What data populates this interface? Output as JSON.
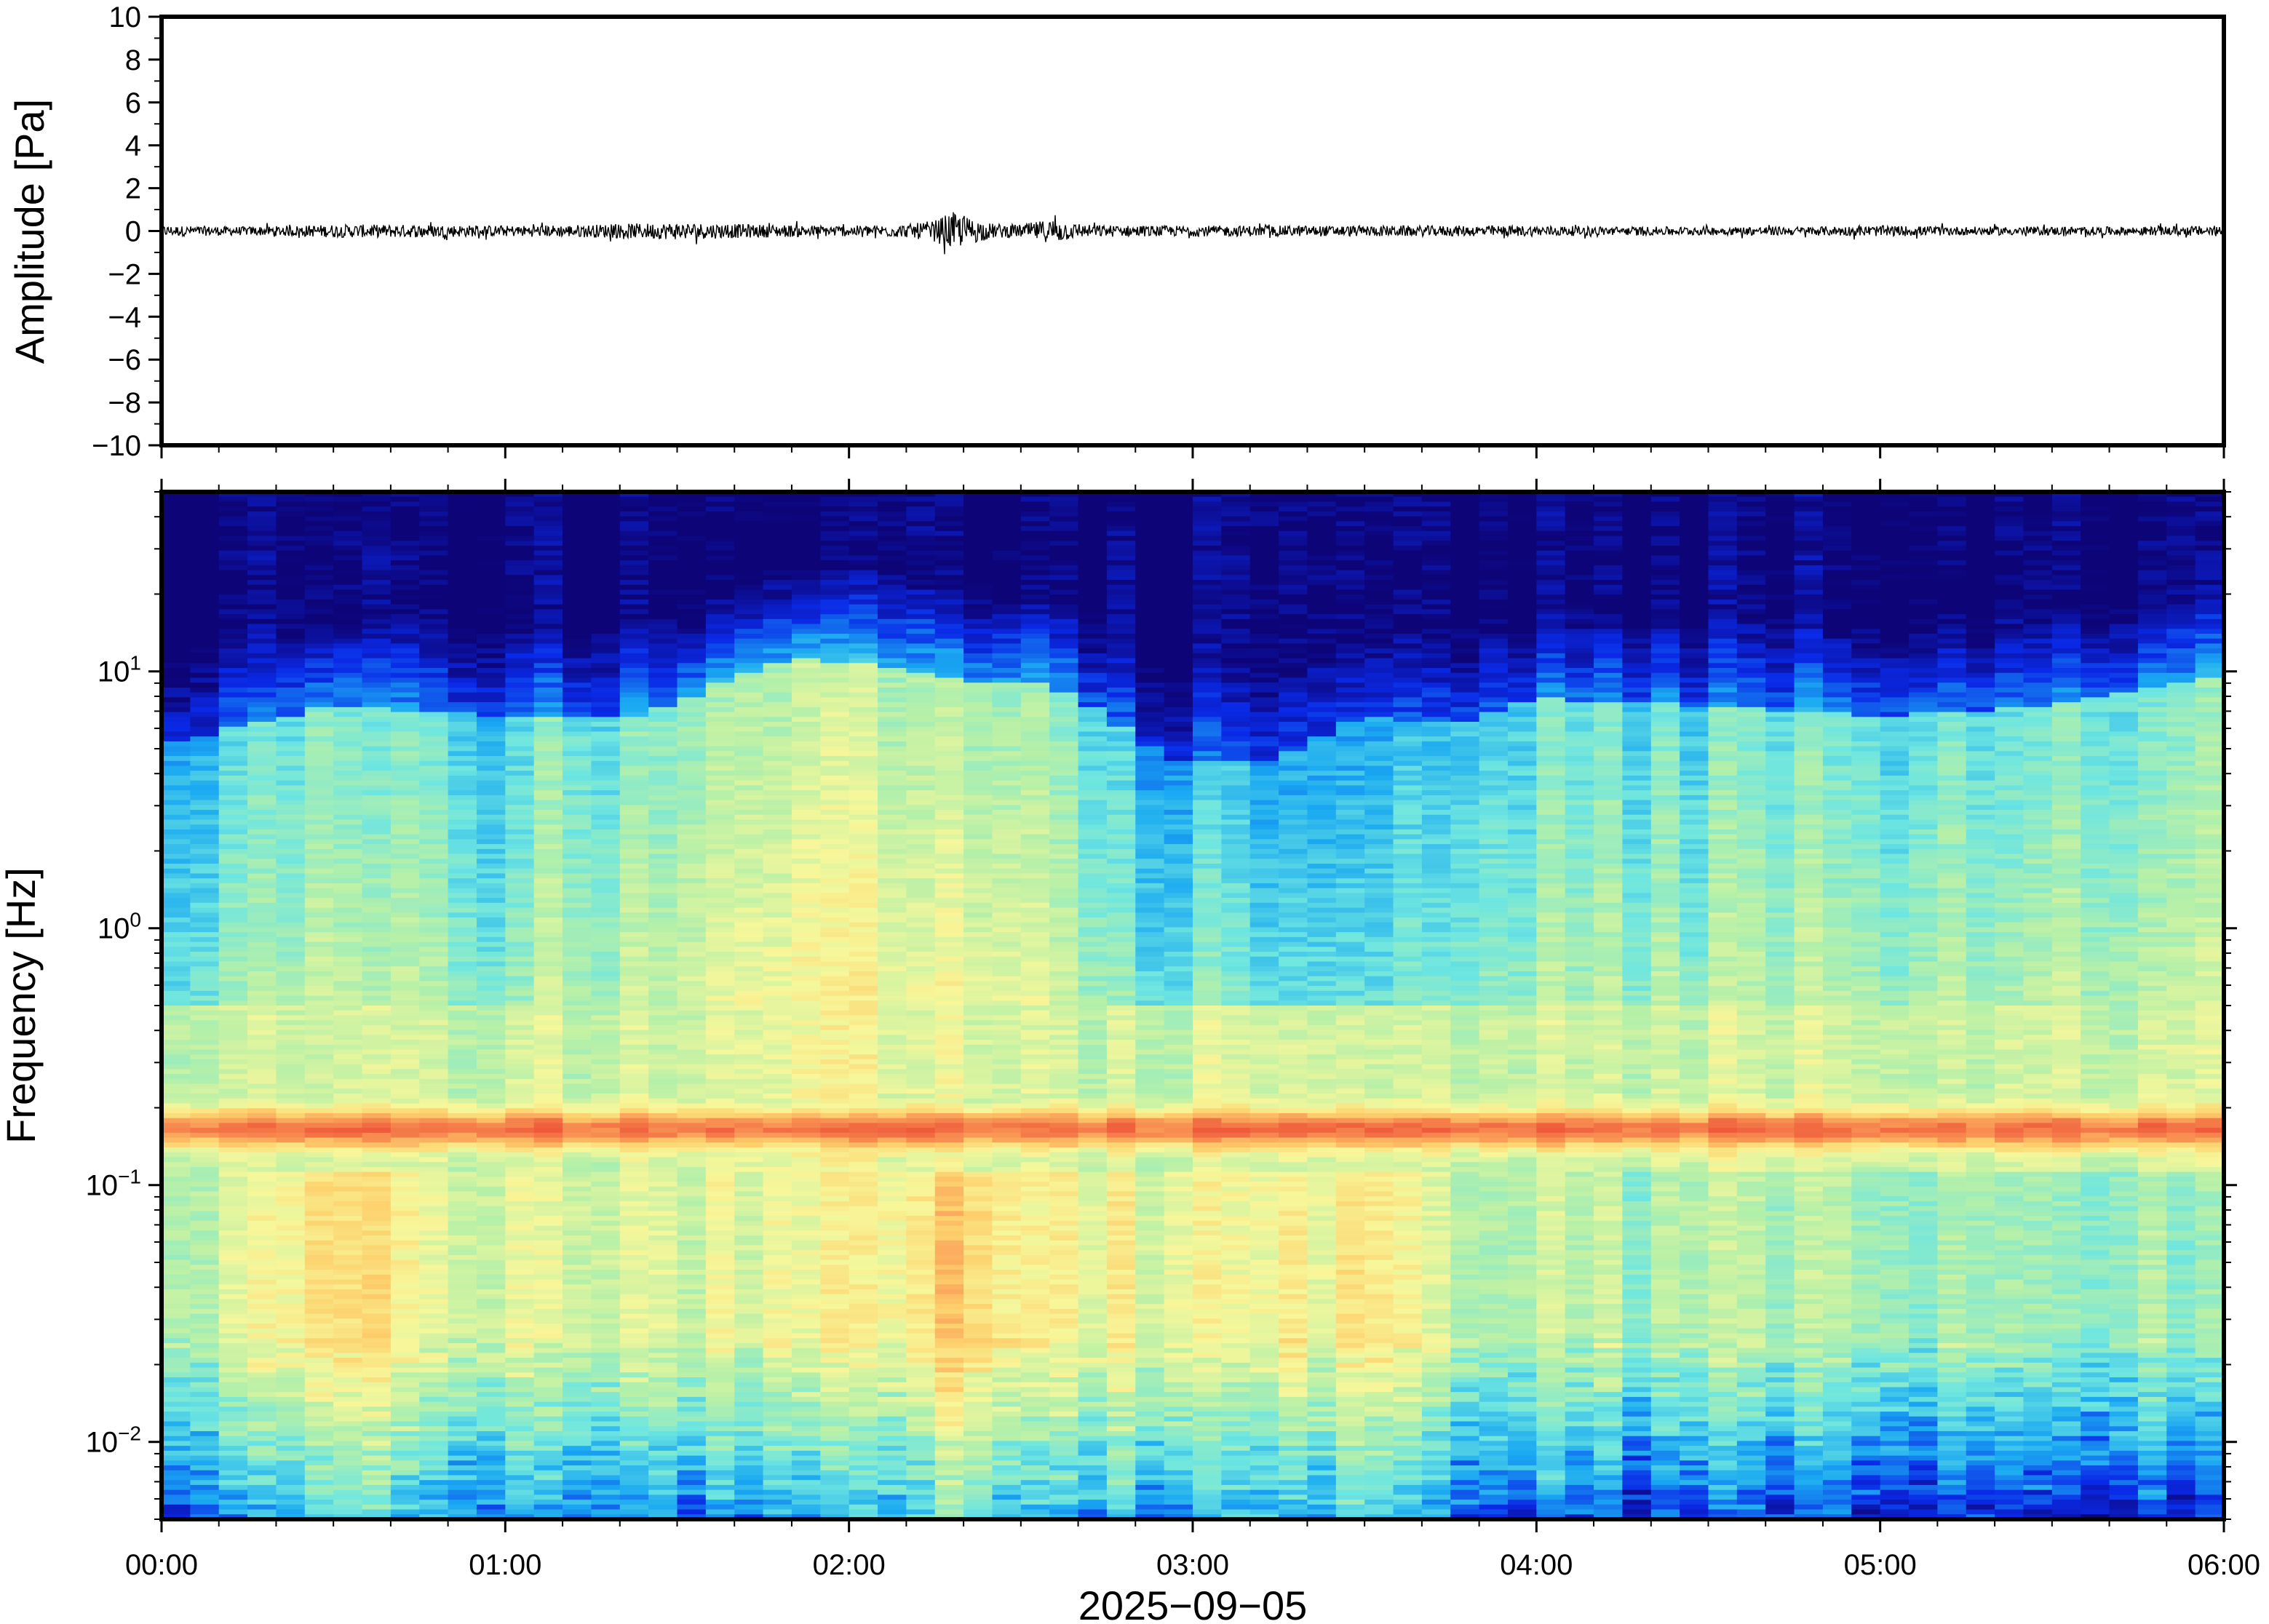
{
  "chart_data": [
    {
      "type": "line",
      "panel": "waveform",
      "ylabel": "Amplitude [Pa]",
      "ylim": [
        -10,
        10
      ],
      "yticks": [
        10,
        8,
        6,
        4,
        2,
        0,
        -2,
        -4,
        -6,
        -8,
        -10
      ],
      "ytick_labels": [
        "10",
        "8",
        "6",
        "4",
        "2",
        "0",
        "−2",
        "−4",
        "−6",
        "−8",
        "−10"
      ],
      "xlim": [
        "00:00",
        "06:00"
      ],
      "series": [
        {
          "x_minutes": [
            0,
            15,
            30,
            45,
            60,
            75,
            90,
            105,
            120,
            130,
            135,
            138,
            140,
            145,
            150,
            156,
            160,
            170,
            180,
            195,
            210,
            225,
            240,
            255,
            270,
            285,
            300,
            315,
            330,
            345,
            360
          ],
          "envelope_pa": [
            0.25,
            0.2,
            0.3,
            0.3,
            0.25,
            0.3,
            0.4,
            0.3,
            0.25,
            0.3,
            0.5,
            0.9,
            0.7,
            0.35,
            0.3,
            0.6,
            0.3,
            0.25,
            0.25,
            0.25,
            0.25,
            0.25,
            0.25,
            0.2,
            0.2,
            0.2,
            0.25,
            0.2,
            0.2,
            0.2,
            0.25
          ],
          "color": "#000000"
        }
      ]
    },
    {
      "type": "heatmap",
      "panel": "spectrogram",
      "ylabel": "Frequency [Hz]",
      "xlabel": "2025−09−05",
      "yscale": "log",
      "ylim_hz": [
        0.005,
        50
      ],
      "yticks": [
        {
          "value": 10,
          "base": "10",
          "exp": "1"
        },
        {
          "value": 1,
          "base": "10",
          "exp": "0"
        },
        {
          "value": 0.1,
          "base": "10",
          "exp": "−1"
        },
        {
          "value": 0.01,
          "base": "10",
          "exp": "−2"
        }
      ],
      "xticks": [
        "00:00",
        "01:00",
        "02:00",
        "03:00",
        "04:00",
        "05:00",
        "06:00"
      ],
      "colormap": [
        "#0d0478",
        "#0a2ae8",
        "#1aa9f2",
        "#6ee6e0",
        "#b6f0a8",
        "#f7f79a",
        "#fdd06c",
        "#f89052",
        "#ee5a3a"
      ],
      "time_minutes": [
        0,
        30,
        60,
        85,
        110,
        125,
        140,
        155,
        175,
        195,
        210,
        225,
        240,
        270,
        300,
        330,
        360
      ],
      "noise_cutoff_hz": [
        9,
        13,
        12,
        12,
        20,
        19,
        16,
        16,
        8,
        8,
        12,
        11,
        14,
        13,
        12,
        13,
        17
      ],
      "high_band_intensity": [
        0.3,
        0.42,
        0.34,
        0.45,
        0.55,
        0.5,
        0.48,
        0.44,
        0.26,
        0.28,
        0.24,
        0.3,
        0.36,
        0.38,
        0.38,
        0.38,
        0.4
      ],
      "microseism_peak_hz": 0.165,
      "microseism_peak_intensity": 0.95,
      "secondary_band_hz": [
        0.03,
        0.1
      ],
      "secondary_band_intensity": [
        0.55,
        0.68,
        0.6,
        0.58,
        0.62,
        0.62,
        0.75,
        0.62,
        0.62,
        0.6,
        0.66,
        0.52,
        0.5,
        0.5,
        0.48,
        0.46,
        0.44
      ]
    }
  ]
}
